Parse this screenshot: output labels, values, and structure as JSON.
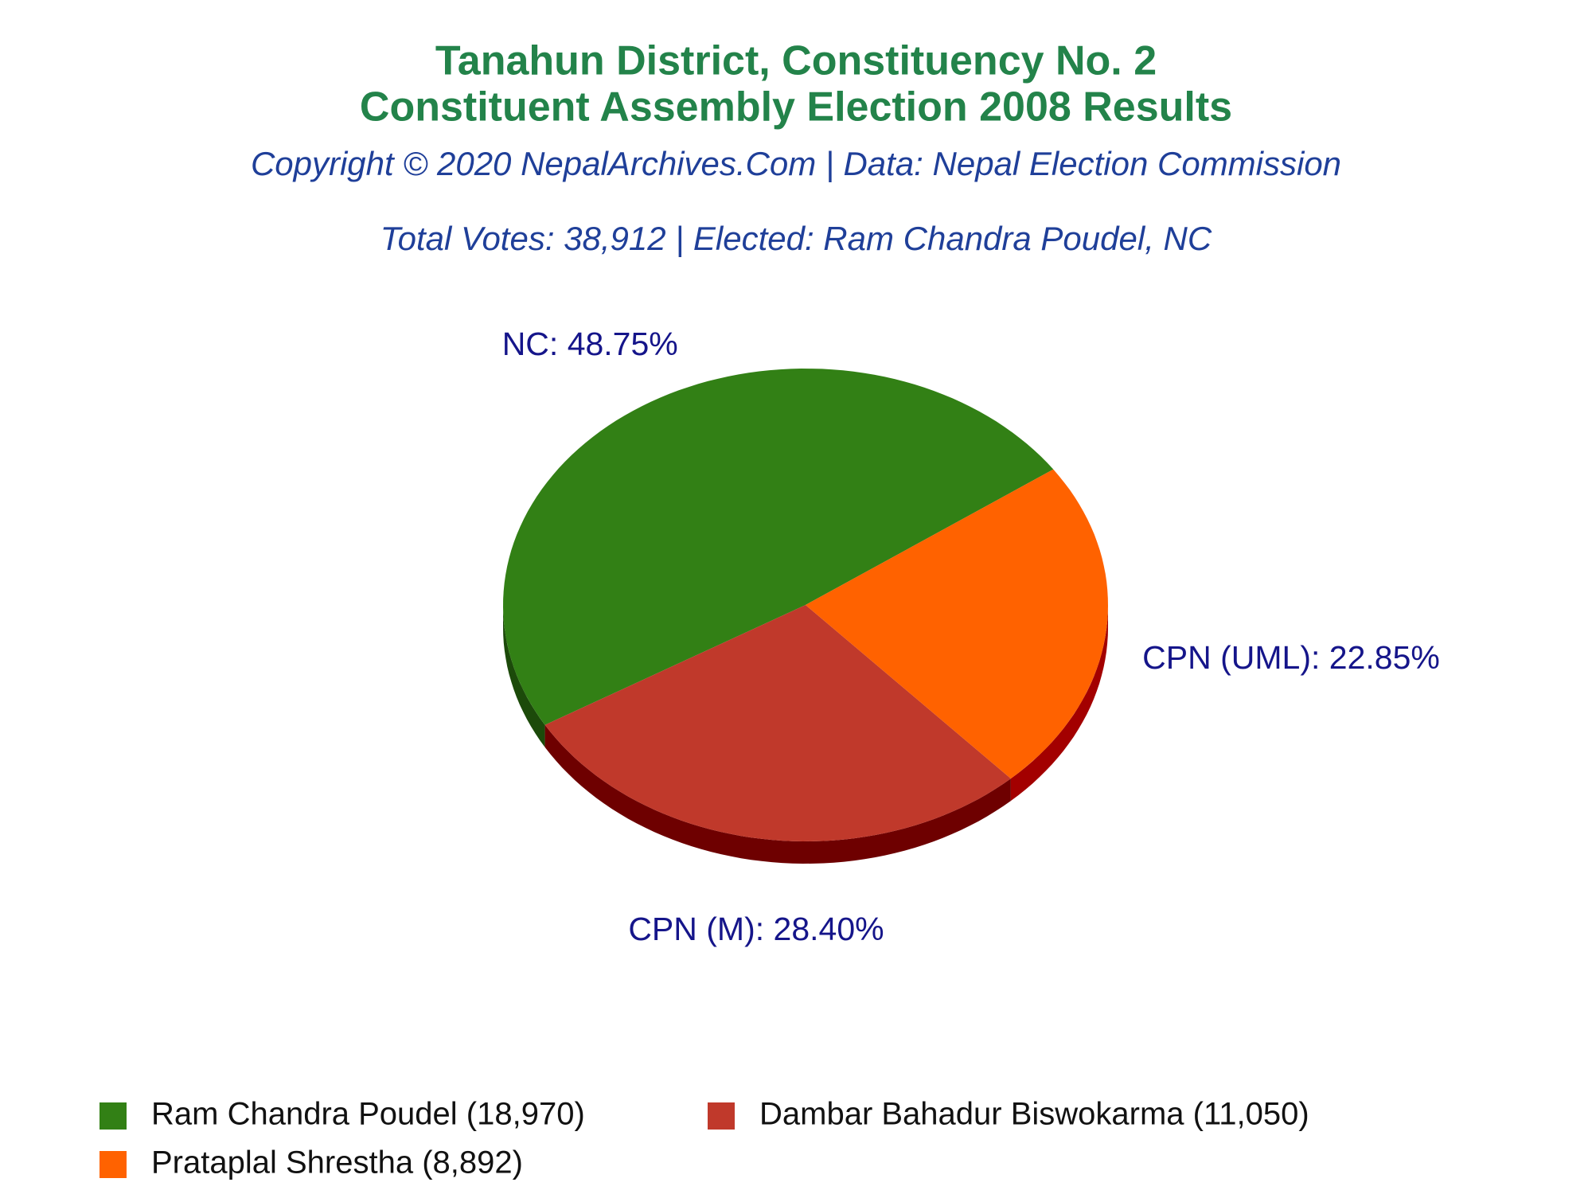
{
  "chart_data": {
    "type": "pie",
    "title": [
      "Tanahun District, Constituency No. 2",
      "Constituent Assembly Election 2008 Results"
    ],
    "subtitle": "Copyright © 2020 NepalArchives.Com | Data: Nepal Election Commission",
    "annotation": "Total Votes: 38,912 | Elected: Ram Chandra Poudel, NC",
    "values": [
      48.75,
      28.4,
      22.85
    ],
    "value_labels": [
      "NC: 48.75%",
      "CPN (M): 28.40%",
      "CPN (UML): 22.85%"
    ],
    "colors": [
      "#328015",
      "#c0392b",
      "#ff6200"
    ],
    "side_colors": [
      "#1c4a0a",
      "#6e0000",
      "#a30000"
    ],
    "legend": [
      "Ram Chandra Poudel (18,970)",
      "Dambar Bahadur Biswokarma (11,050)",
      "Prataplal Shrestha (8,892)"
    ]
  }
}
